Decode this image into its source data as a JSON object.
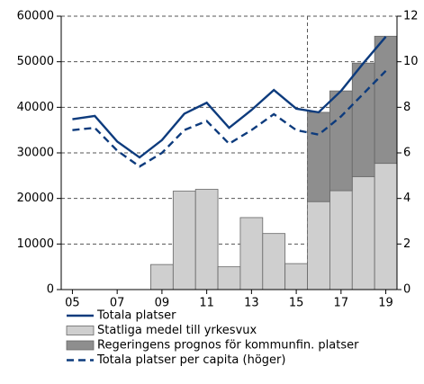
{
  "chart_data": {
    "type": "bar",
    "categories": [
      "05",
      null,
      "07",
      null,
      "09",
      null,
      "11",
      null,
      "13",
      null,
      "15",
      null,
      "17",
      null,
      "19"
    ],
    "series": [
      {
        "name": "Totala platser",
        "type": "line",
        "color": "#0d3b7d",
        "dashed": false,
        "axis": "y",
        "values": [
          37400,
          38100,
          32500,
          29000,
          32800,
          38600,
          41000,
          35500,
          39400,
          43800,
          39700,
          38900,
          43600,
          49700,
          55500
        ]
      },
      {
        "name": "Statliga medel till yrkesvux",
        "type": "bar",
        "color": "#cfcfcf",
        "values": [
          null,
          null,
          null,
          null,
          5500,
          21600,
          22000,
          5000,
          15800,
          12300,
          5700,
          19300,
          21700,
          24800,
          27700
        ]
      },
      {
        "name": "Regeringens prognos för kommunfin. platser",
        "type": "bar",
        "color": "#8e8e8e",
        "values": [
          null,
          null,
          null,
          null,
          null,
          null,
          null,
          null,
          null,
          null,
          null,
          19600,
          21900,
          24900,
          27900
        ]
      },
      {
        "name": "Totala platser per capita (höger)",
        "type": "line",
        "color": "#0d3b7d",
        "dashed": true,
        "axis": "y2",
        "values": [
          7.0,
          7.1,
          6.1,
          5.4,
          6.0,
          7.0,
          7.4,
          6.4,
          7.0,
          7.7,
          7.0,
          6.8,
          7.6,
          8.6,
          9.6
        ]
      }
    ],
    "ylim": [
      0,
      60000
    ],
    "yticks": [
      0,
      10000,
      20000,
      30000,
      40000,
      50000,
      60000
    ],
    "y2lim": [
      0,
      12
    ],
    "y2ticks": [
      0,
      2,
      4,
      6,
      8,
      10,
      12
    ],
    "grid": true
  }
}
